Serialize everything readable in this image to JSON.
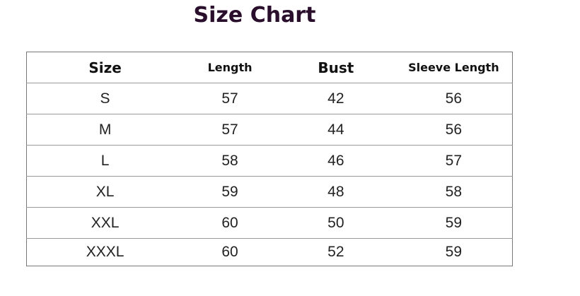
{
  "title": "Size Chart",
  "table": {
    "headers": [
      "Size",
      "Length",
      "Bust",
      "Sleeve Length"
    ],
    "rows": [
      [
        "S",
        "57",
        "42",
        "56"
      ],
      [
        "M",
        "57",
        "44",
        "56"
      ],
      [
        "L",
        "58",
        "46",
        "57"
      ],
      [
        "XL",
        "59",
        "48",
        "58"
      ],
      [
        "XXL",
        "60",
        "50",
        "59"
      ],
      [
        "XXXL",
        "60",
        "52",
        "59"
      ]
    ]
  },
  "colors": {
    "title": "#2a0f2c",
    "border": "#777777"
  }
}
